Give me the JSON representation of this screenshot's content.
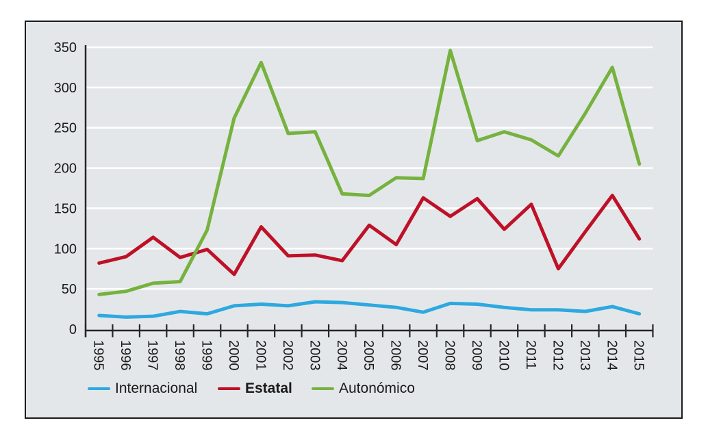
{
  "chart_data": {
    "type": "line",
    "title": "",
    "xlabel": "",
    "ylabel": "",
    "categories": [
      "1995",
      "1996",
      "1997",
      "1998",
      "1999",
      "2000",
      "2001",
      "2002",
      "2003",
      "2004",
      "2005",
      "2006",
      "2007",
      "2008",
      "2009",
      "2010",
      "2011",
      "2012",
      "2013",
      "2014",
      "2015"
    ],
    "series": [
      {
        "name": "Internacional",
        "color": "#2EA8E0",
        "values": [
          17,
          15,
          16,
          22,
          19,
          29,
          31,
          29,
          34,
          33,
          30,
          27,
          21,
          32,
          31,
          27,
          24,
          24,
          22,
          28,
          19
        ]
      },
      {
        "name": "Estatal",
        "color": "#BE1128",
        "values": [
          82,
          90,
          114,
          89,
          99,
          68,
          127,
          91,
          92,
          85,
          129,
          105,
          163,
          140,
          162,
          124,
          155,
          75,
          121,
          166,
          112
        ]
      },
      {
        "name": "Autonómico",
        "color": "#76B23F",
        "values": [
          43,
          47,
          57,
          59,
          123,
          262,
          331,
          243,
          245,
          168,
          166,
          188,
          187,
          346,
          234,
          245,
          235,
          215,
          268,
          325,
          205
        ]
      }
    ],
    "ylim": [
      0,
      350
    ],
    "yticks": [
      0,
      50,
      100,
      150,
      200,
      250,
      300,
      350
    ],
    "grid": "horizontal",
    "legend_position": "bottom",
    "plot_background": "#E4E7E9",
    "gridline_color": "#FFFFFF",
    "axis_color": "#262626",
    "text_color": "#1A1A1A",
    "border_color": "#1A1A1A"
  }
}
